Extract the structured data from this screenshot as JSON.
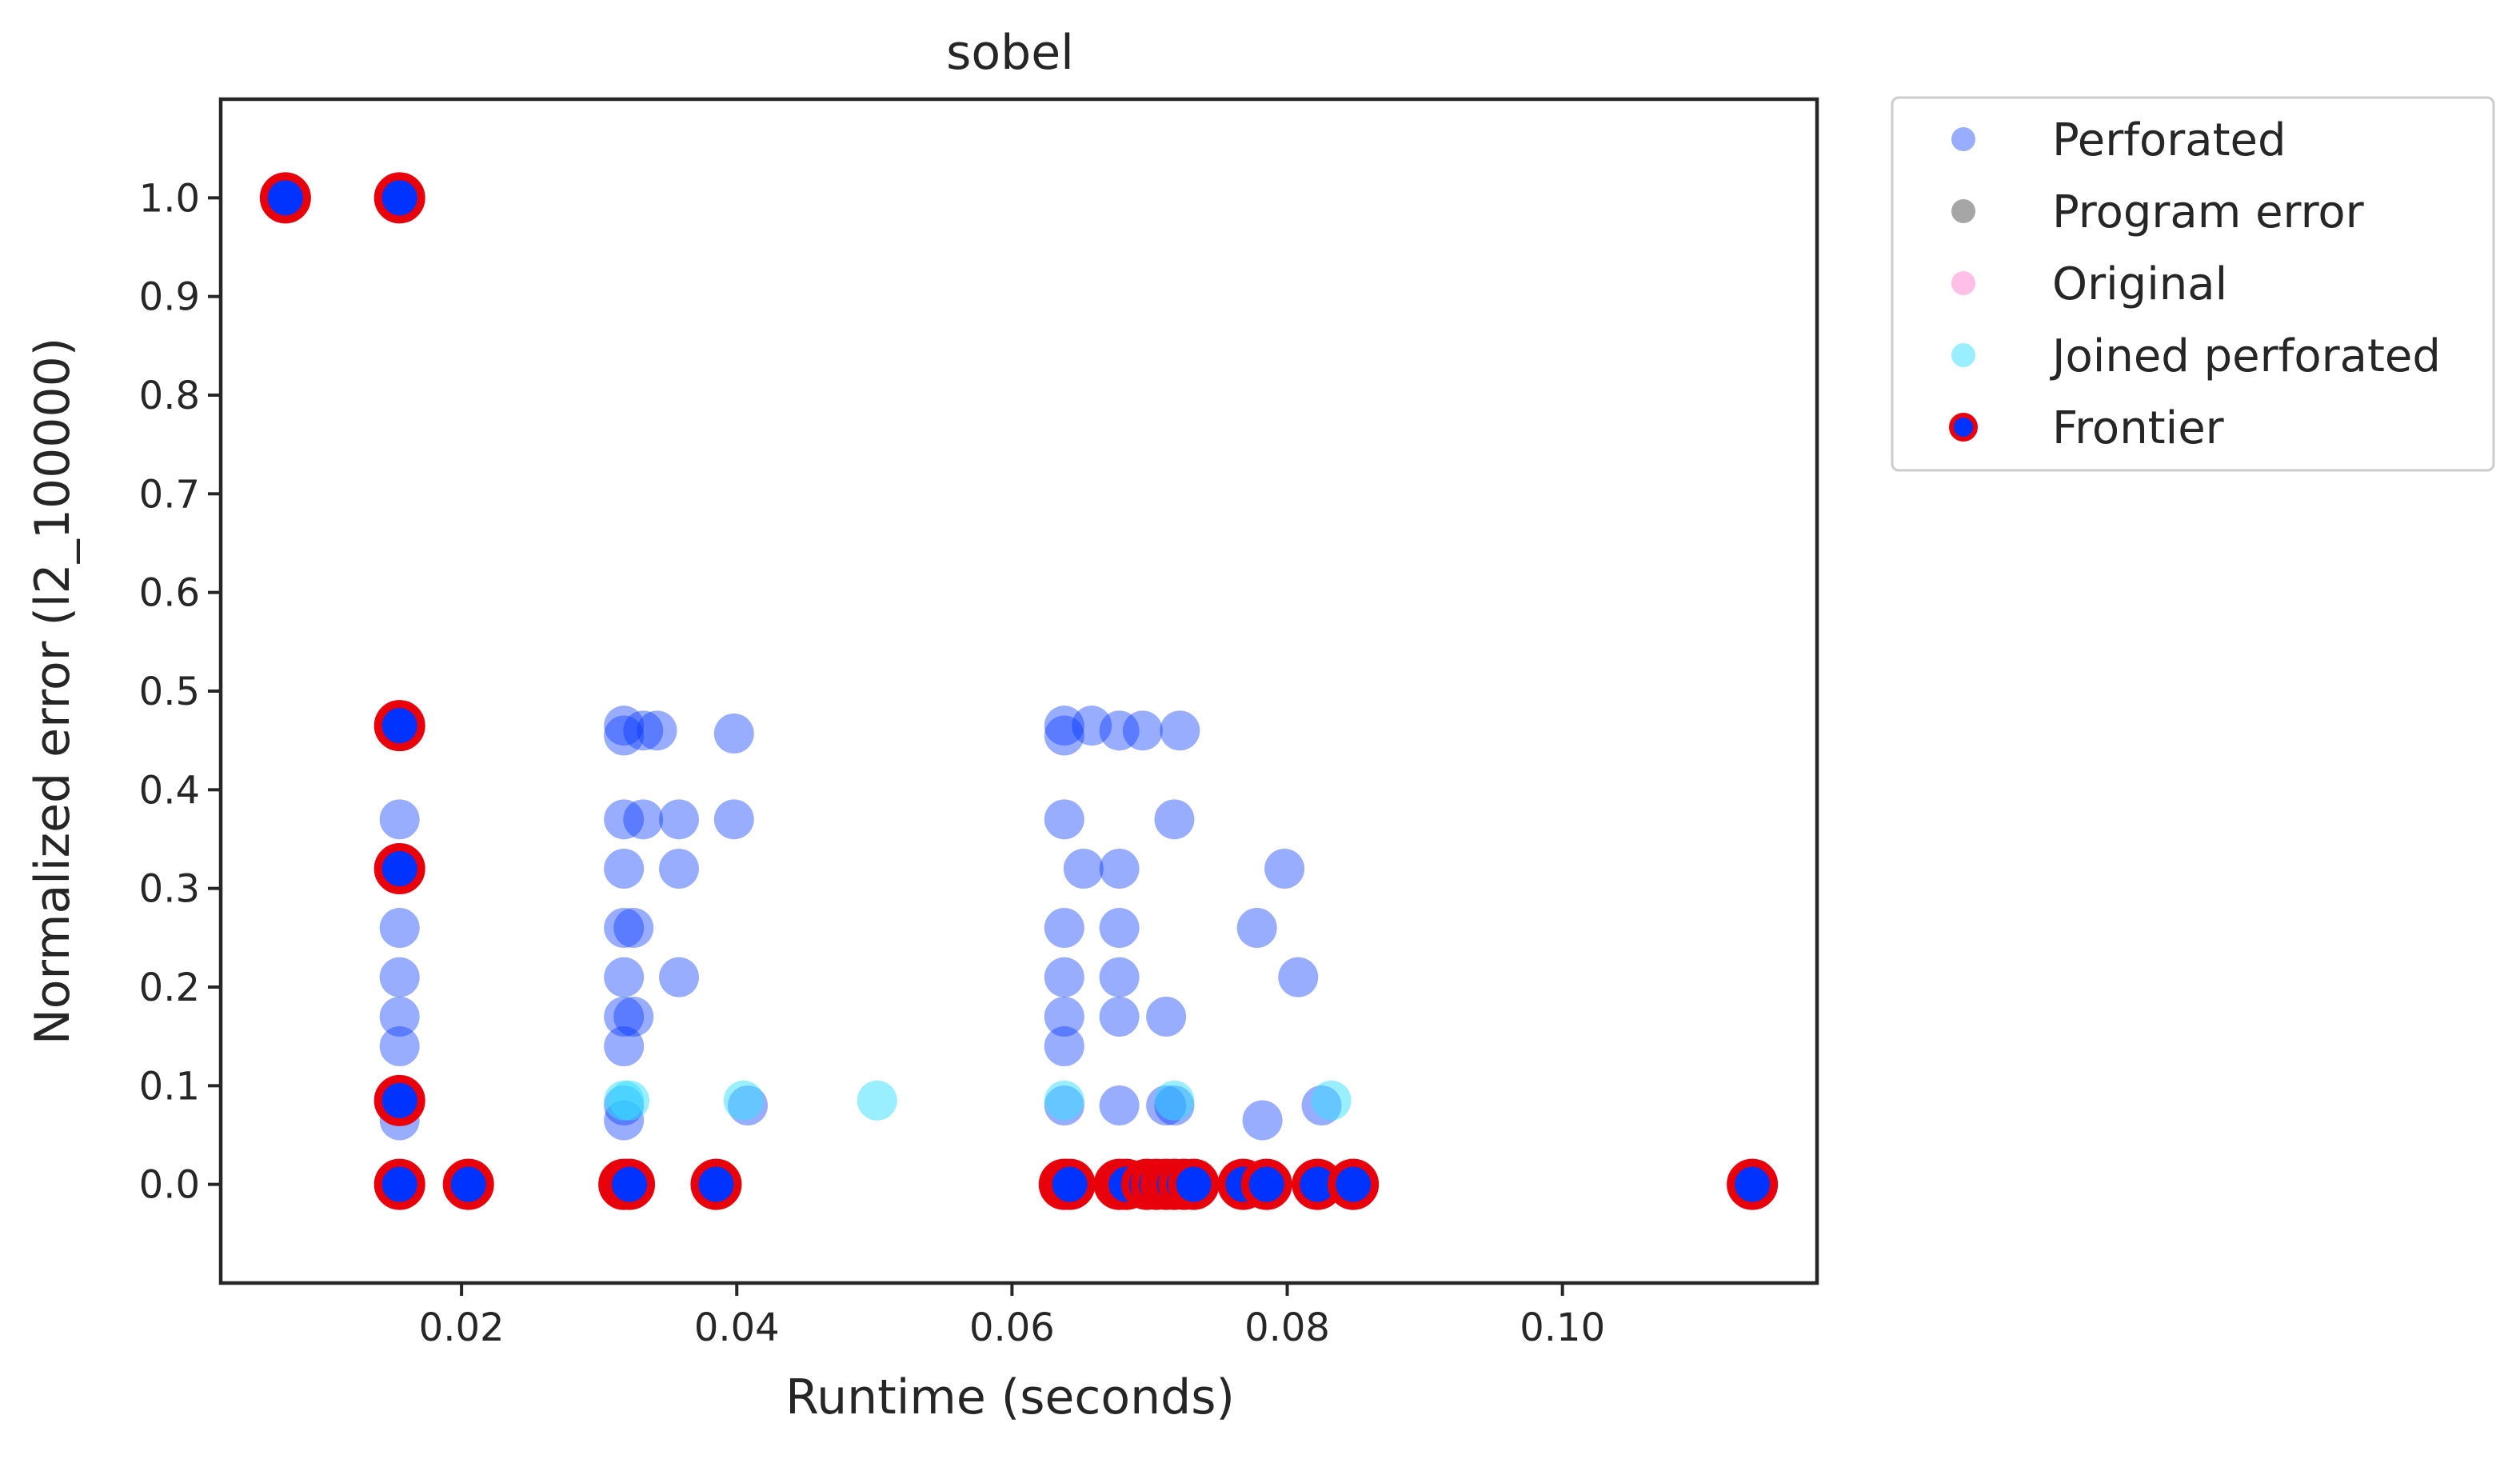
{
  "chart_data": {
    "type": "scatter",
    "title": "sobel",
    "xlabel": "Runtime (seconds)",
    "ylabel": "Normalized error (l2_100000)",
    "xlim": [
      0.0025,
      0.1185
    ],
    "ylim": [
      -0.1,
      1.1
    ],
    "xticks": [
      0.02,
      0.04,
      0.06,
      0.08,
      0.1
    ],
    "xtick_labels": [
      "0.02",
      "0.04",
      "0.06",
      "0.08",
      "0.10"
    ],
    "yticks": [
      0.0,
      0.1,
      0.2,
      0.3,
      0.4,
      0.5,
      0.6,
      0.7,
      0.8,
      0.9,
      1.0
    ],
    "ytick_labels": [
      "0.0",
      "0.1",
      "0.2",
      "0.3",
      "0.4",
      "0.5",
      "0.6",
      "0.7",
      "0.8",
      "0.9",
      "1.0"
    ],
    "grid": false,
    "legend_position": "outside-upper-right",
    "series": [
      {
        "name": "Perforated",
        "color": "#0033ff",
        "alpha": 0.4,
        "marker": "circle",
        "points": [
          [
            0.0155,
            0.46
          ],
          [
            0.0155,
            0.37
          ],
          [
            0.0155,
            0.32
          ],
          [
            0.0155,
            0.26
          ],
          [
            0.0155,
            0.21
          ],
          [
            0.0155,
            0.17
          ],
          [
            0.0155,
            0.14
          ],
          [
            0.0155,
            0.085
          ],
          [
            0.0155,
            0.065
          ],
          [
            0.0155,
            0.0
          ],
          [
            0.0205,
            0.0
          ],
          [
            0.0318,
            0.465
          ],
          [
            0.0318,
            0.455
          ],
          [
            0.0318,
            0.37
          ],
          [
            0.0318,
            0.32
          ],
          [
            0.0318,
            0.26
          ],
          [
            0.0318,
            0.21
          ],
          [
            0.0318,
            0.17
          ],
          [
            0.0318,
            0.14
          ],
          [
            0.0318,
            0.08
          ],
          [
            0.0318,
            0.065
          ],
          [
            0.0322,
            0.0
          ],
          [
            0.0325,
            0.26
          ],
          [
            0.0325,
            0.17
          ],
          [
            0.0332,
            0.46
          ],
          [
            0.0332,
            0.37
          ],
          [
            0.0342,
            0.46
          ],
          [
            0.0358,
            0.37
          ],
          [
            0.0358,
            0.32
          ],
          [
            0.0358,
            0.21
          ],
          [
            0.0385,
            0.0
          ],
          [
            0.0398,
            0.457
          ],
          [
            0.0398,
            0.37
          ],
          [
            0.0408,
            0.08
          ],
          [
            0.0638,
            0.465
          ],
          [
            0.0638,
            0.455
          ],
          [
            0.0638,
            0.37
          ],
          [
            0.0638,
            0.26
          ],
          [
            0.0638,
            0.21
          ],
          [
            0.0638,
            0.17
          ],
          [
            0.0638,
            0.14
          ],
          [
            0.0638,
            0.08
          ],
          [
            0.0638,
            0.0
          ],
          [
            0.0642,
            0.0
          ],
          [
            0.0652,
            0.32
          ],
          [
            0.0658,
            0.465
          ],
          [
            0.0678,
            0.46
          ],
          [
            0.0678,
            0.32
          ],
          [
            0.0678,
            0.26
          ],
          [
            0.0678,
            0.21
          ],
          [
            0.0678,
            0.17
          ],
          [
            0.0678,
            0.08
          ],
          [
            0.0683,
            0.0
          ],
          [
            0.0695,
            0.46
          ],
          [
            0.0698,
            0.0
          ],
          [
            0.0705,
            0.0
          ],
          [
            0.0712,
            0.17
          ],
          [
            0.0712,
            0.08
          ],
          [
            0.0718,
            0.37
          ],
          [
            0.0718,
            0.08
          ],
          [
            0.0718,
            0.0
          ],
          [
            0.0722,
            0.46
          ],
          [
            0.0725,
            0.0
          ],
          [
            0.0732,
            0.0
          ],
          [
            0.0768,
            0.0
          ],
          [
            0.0778,
            0.26
          ],
          [
            0.0782,
            0.065
          ],
          [
            0.0785,
            0.0
          ],
          [
            0.0798,
            0.32
          ],
          [
            0.0808,
            0.21
          ],
          [
            0.0822,
            0.0
          ],
          [
            0.0825,
            0.08
          ],
          [
            0.0848,
            0.0
          ],
          [
            0.1138,
            0.0
          ]
        ]
      },
      {
        "name": "Program error",
        "color": "#808080",
        "alpha": 0.7,
        "marker": "circle",
        "points": []
      },
      {
        "name": "Original",
        "color": "#ff80d0",
        "alpha": 0.5,
        "marker": "circle",
        "points": []
      },
      {
        "name": "Joined perforated",
        "color": "#33e0ff",
        "alpha": 0.5,
        "marker": "circle",
        "points": [
          [
            0.0155,
            0.085
          ],
          [
            0.0318,
            0.085
          ],
          [
            0.0322,
            0.085
          ],
          [
            0.0405,
            0.085
          ],
          [
            0.0502,
            0.085
          ],
          [
            0.0638,
            0.085
          ],
          [
            0.0718,
            0.085
          ],
          [
            0.0832,
            0.085
          ]
        ]
      },
      {
        "name": "Frontier",
        "color": "#0033ff",
        "edge_color": "#e8000b",
        "alpha": 1.0,
        "marker": "circle-outlined",
        "points": [
          [
            0.0072,
            1.0
          ],
          [
            0.0155,
            1.0
          ],
          [
            0.0155,
            0.465
          ],
          [
            0.0155,
            0.32
          ],
          [
            0.0155,
            0.085
          ],
          [
            0.0155,
            0.0
          ],
          [
            0.0205,
            0.0
          ],
          [
            0.0318,
            0.0
          ],
          [
            0.0322,
            0.0
          ],
          [
            0.0385,
            0.0
          ],
          [
            0.0638,
            0.0
          ],
          [
            0.0642,
            0.0
          ],
          [
            0.0678,
            0.0
          ],
          [
            0.0683,
            0.0
          ],
          [
            0.0698,
            0.0
          ],
          [
            0.0705,
            0.0
          ],
          [
            0.0712,
            0.0
          ],
          [
            0.0718,
            0.0
          ],
          [
            0.0725,
            0.0
          ],
          [
            0.0732,
            0.0
          ],
          [
            0.0768,
            0.0
          ],
          [
            0.0785,
            0.0
          ],
          [
            0.0822,
            0.0
          ],
          [
            0.0848,
            0.0
          ],
          [
            0.1138,
            0.0
          ]
        ]
      }
    ]
  },
  "legend": {
    "items": [
      {
        "label": "Perforated",
        "color": "#0033ff",
        "alpha": 0.4,
        "edge": null
      },
      {
        "label": "Program error",
        "color": "#808080",
        "alpha": 0.7,
        "edge": null
      },
      {
        "label": "Original",
        "color": "#ff80d0",
        "alpha": 0.5,
        "edge": null
      },
      {
        "label": "Joined perforated",
        "color": "#33e0ff",
        "alpha": 0.5,
        "edge": null
      },
      {
        "label": "Frontier",
        "color": "#0033ff",
        "alpha": 1.0,
        "edge": "#e8000b"
      }
    ]
  }
}
